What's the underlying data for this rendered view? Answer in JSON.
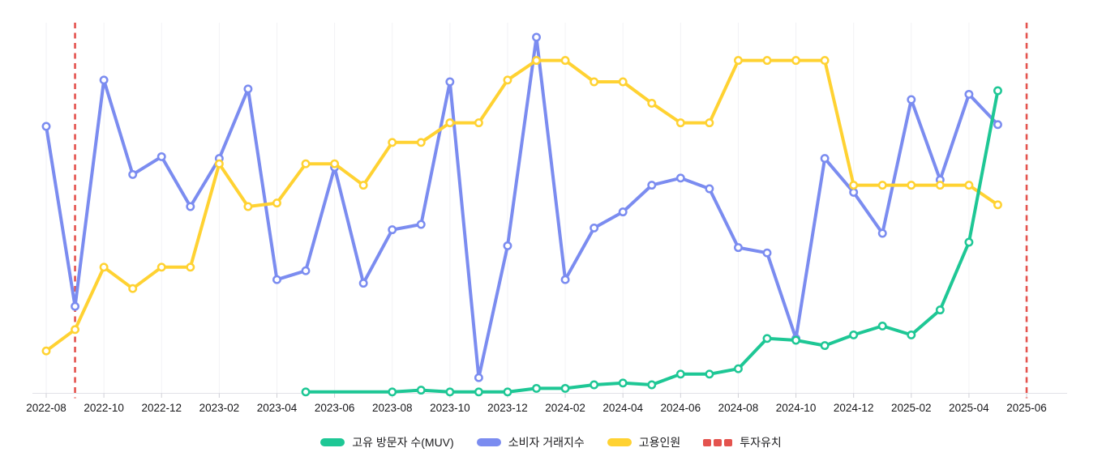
{
  "chart_data": {
    "type": "line",
    "title": "",
    "background": "#ffffff",
    "grid": "vertical-only",
    "gridline_color": "#f2f2f5",
    "axis_line_color": "#e2e2e8",
    "tick_mark_color": "#cfcfd6",
    "legend_position": "bottom-center",
    "y_axis": {
      "visible": false,
      "implied_range": [
        0,
        100
      ]
    },
    "x_tick_labels": [
      "2022-08",
      "2022-10",
      "2022-12",
      "2023-02",
      "2023-04",
      "2023-06",
      "2023-08",
      "2023-10",
      "2023-12",
      "2024-02",
      "2024-04",
      "2024-06",
      "2024-08",
      "2024-10",
      "2024-12",
      "2025-02",
      "2025-04",
      "2025-06"
    ],
    "series": [
      {
        "name": "고유 방문자 수(MUV)",
        "color": "#1ec795",
        "marker": "circle-open",
        "points": [
          [
            "2023-05",
            0.5
          ],
          [
            "2023-08",
            0.5
          ],
          [
            "2023-09",
            1
          ],
          [
            "2023-10",
            0.5
          ],
          [
            "2023-11",
            0.5
          ],
          [
            "2023-12",
            0.5
          ],
          [
            "2024-01",
            1.5
          ],
          [
            "2024-02",
            1.5
          ],
          [
            "2024-03",
            2.5
          ],
          [
            "2024-04",
            3
          ],
          [
            "2024-05",
            2.5
          ],
          [
            "2024-06",
            5.5
          ],
          [
            "2024-07",
            5.5
          ],
          [
            "2024-08",
            7
          ],
          [
            "2024-09",
            15.5
          ],
          [
            "2024-10",
            15
          ],
          [
            "2024-11",
            13.5
          ],
          [
            "2024-12",
            16.5
          ],
          [
            "2025-01",
            19
          ],
          [
            "2025-02",
            16.5
          ],
          [
            "2025-03",
            23.5
          ],
          [
            "2025-04",
            42.5
          ],
          [
            "2025-05",
            85
          ]
        ]
      },
      {
        "name": "소비자 거래지수",
        "color": "#7b8cf0",
        "marker": "circle-open",
        "points": [
          [
            "2022-08",
            75
          ],
          [
            "2022-09",
            24.5
          ],
          [
            "2022-10",
            88
          ],
          [
            "2022-11",
            61.5
          ],
          [
            "2022-12",
            66.5
          ],
          [
            "2023-01",
            52.5
          ],
          [
            "2023-02",
            66
          ],
          [
            "2023-03",
            85.5
          ],
          [
            "2023-04",
            32
          ],
          [
            "2023-05",
            34.5
          ],
          [
            "2023-06",
            63.5
          ],
          [
            "2023-07",
            31
          ],
          [
            "2023-08",
            46
          ],
          [
            "2023-09",
            47.5
          ],
          [
            "2023-10",
            87.5
          ],
          [
            "2023-11",
            4.5
          ],
          [
            "2023-12",
            41.5
          ],
          [
            "2024-01",
            100
          ],
          [
            "2024-02",
            32
          ],
          [
            "2024-03",
            46.5
          ],
          [
            "2024-04",
            51
          ],
          [
            "2024-05",
            58.5
          ],
          [
            "2024-06",
            60.5
          ],
          [
            "2024-07",
            57.5
          ],
          [
            "2024-08",
            41
          ],
          [
            "2024-09",
            39.5
          ],
          [
            "2024-10",
            15.5
          ],
          [
            "2024-11",
            66
          ],
          [
            "2024-12",
            56.5
          ],
          [
            "2025-01",
            45
          ],
          [
            "2025-02",
            82.5
          ],
          [
            "2025-03",
            60
          ],
          [
            "2025-04",
            84
          ],
          [
            "2025-05",
            75.5
          ]
        ]
      },
      {
        "name": "고용인원",
        "color": "#ffd232",
        "marker": "circle-open",
        "points": [
          [
            "2022-08",
            12
          ],
          [
            "2022-09",
            18
          ],
          [
            "2022-10",
            35.5
          ],
          [
            "2022-11",
            29.5
          ],
          [
            "2022-12",
            35.5
          ],
          [
            "2023-01",
            35.5
          ],
          [
            "2023-02",
            64.5
          ],
          [
            "2023-03",
            52.5
          ],
          [
            "2023-04",
            53.5
          ],
          [
            "2023-05",
            64.5
          ],
          [
            "2023-06",
            64.5
          ],
          [
            "2023-07",
            58.5
          ],
          [
            "2023-08",
            70.5
          ],
          [
            "2023-09",
            70.5
          ],
          [
            "2023-10",
            76
          ],
          [
            "2023-11",
            76
          ],
          [
            "2023-12",
            88
          ],
          [
            "2024-01",
            93.5
          ],
          [
            "2024-02",
            93.5
          ],
          [
            "2024-03",
            87.5
          ],
          [
            "2024-04",
            87.5
          ],
          [
            "2024-05",
            81.5
          ],
          [
            "2024-06",
            76
          ],
          [
            "2024-07",
            76
          ],
          [
            "2024-08",
            93.5
          ],
          [
            "2024-09",
            93.5
          ],
          [
            "2024-10",
            93.5
          ],
          [
            "2024-11",
            93.5
          ],
          [
            "2024-12",
            58.5
          ],
          [
            "2025-01",
            58.5
          ],
          [
            "2025-02",
            58.5
          ],
          [
            "2025-03",
            58.5
          ],
          [
            "2025-04",
            58.5
          ],
          [
            "2025-05",
            53
          ]
        ]
      }
    ],
    "events": {
      "name": "투자유치",
      "color": "#e4534e",
      "style": "dashed-vertical",
      "dates": [
        "2022-09",
        "2025-06"
      ]
    }
  }
}
